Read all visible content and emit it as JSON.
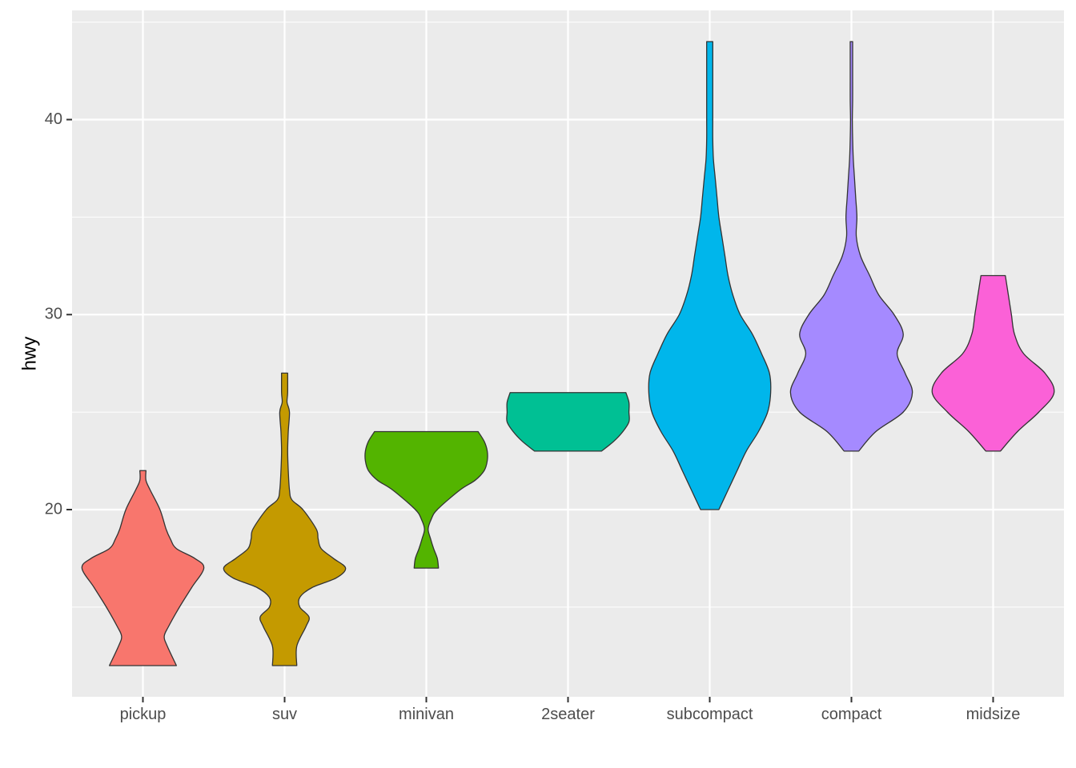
{
  "chart_data": {
    "type": "violin",
    "title": "",
    "xlabel": "",
    "ylabel": "hwy",
    "ylim": [
      10.4,
      45.6
    ],
    "y_ticks": [
      20,
      30,
      40
    ],
    "grid": true,
    "legend": "none",
    "background": "#ebebeb",
    "categories": [
      {
        "name": "pickup",
        "color": "#f8766d",
        "profile": [
          [
            12,
            0.55
          ],
          [
            13,
            0.4
          ],
          [
            13.5,
            0.35
          ],
          [
            14,
            0.42
          ],
          [
            15,
            0.6
          ],
          [
            16,
            0.8
          ],
          [
            17,
            1.0
          ],
          [
            17.5,
            0.85
          ],
          [
            18,
            0.55
          ],
          [
            18.5,
            0.45
          ],
          [
            19,
            0.38
          ],
          [
            20,
            0.28
          ],
          [
            21,
            0.12
          ],
          [
            21.5,
            0.05
          ],
          [
            22,
            0.05
          ]
        ]
      },
      {
        "name": "suv",
        "color": "#c49a00",
        "profile": [
          [
            12,
            0.2
          ],
          [
            13,
            0.2
          ],
          [
            14,
            0.35
          ],
          [
            14.5,
            0.4
          ],
          [
            15,
            0.25
          ],
          [
            15.5,
            0.25
          ],
          [
            16,
            0.45
          ],
          [
            16.5,
            0.85
          ],
          [
            17,
            1.0
          ],
          [
            17.5,
            0.8
          ],
          [
            18,
            0.6
          ],
          [
            18.5,
            0.55
          ],
          [
            19,
            0.52
          ],
          [
            20,
            0.3
          ],
          [
            20.5,
            0.12
          ],
          [
            21,
            0.08
          ],
          [
            22,
            0.06
          ],
          [
            23,
            0.05
          ],
          [
            24,
            0.06
          ],
          [
            25,
            0.08
          ],
          [
            25.5,
            0.04
          ],
          [
            26,
            0.05
          ],
          [
            27,
            0.05
          ]
        ]
      },
      {
        "name": "minivan",
        "color": "#53b400",
        "profile": [
          [
            17,
            0.2
          ],
          [
            17.5,
            0.18
          ],
          [
            18,
            0.12
          ],
          [
            18.5,
            0.07
          ],
          [
            19,
            0.03
          ],
          [
            19.5,
            0.08
          ],
          [
            20,
            0.18
          ],
          [
            21,
            0.55
          ],
          [
            21.5,
            0.8
          ],
          [
            22,
            0.95
          ],
          [
            22.5,
            1.0
          ],
          [
            23,
            1.0
          ],
          [
            23.5,
            0.95
          ],
          [
            24,
            0.85
          ]
        ]
      },
      {
        "name": "2seater",
        "color": "#00c094",
        "profile": [
          [
            23,
            0.55
          ],
          [
            23.5,
            0.75
          ],
          [
            24,
            0.9
          ],
          [
            24.5,
            1.0
          ],
          [
            25,
            1.0
          ],
          [
            25.5,
            1.0
          ],
          [
            26,
            0.95
          ]
        ]
      },
      {
        "name": "subcompact",
        "color": "#00b6eb",
        "profile": [
          [
            20,
            0.15
          ],
          [
            21,
            0.3
          ],
          [
            22,
            0.45
          ],
          [
            23,
            0.6
          ],
          [
            24,
            0.8
          ],
          [
            25,
            0.95
          ],
          [
            26,
            1.0
          ],
          [
            27,
            0.98
          ],
          [
            28,
            0.85
          ],
          [
            29,
            0.7
          ],
          [
            30,
            0.5
          ],
          [
            31,
            0.38
          ],
          [
            32,
            0.3
          ],
          [
            33,
            0.25
          ],
          [
            34,
            0.2
          ],
          [
            35,
            0.15
          ],
          [
            36,
            0.12
          ],
          [
            37,
            0.09
          ],
          [
            38,
            0.06
          ],
          [
            39,
            0.05
          ],
          [
            40,
            0.05
          ],
          [
            41,
            0.05
          ],
          [
            42,
            0.05
          ],
          [
            43,
            0.05
          ],
          [
            44,
            0.05
          ]
        ]
      },
      {
        "name": "compact",
        "color": "#a58aff",
        "profile": [
          [
            23,
            0.12
          ],
          [
            24,
            0.4
          ],
          [
            25,
            0.85
          ],
          [
            26,
            1.0
          ],
          [
            27,
            0.88
          ],
          [
            28,
            0.75
          ],
          [
            29,
            0.85
          ],
          [
            30,
            0.7
          ],
          [
            31,
            0.45
          ],
          [
            32,
            0.3
          ],
          [
            33,
            0.15
          ],
          [
            34,
            0.08
          ],
          [
            35,
            0.09
          ],
          [
            36,
            0.07
          ],
          [
            37,
            0.05
          ],
          [
            38,
            0.03
          ],
          [
            39,
            0.02
          ],
          [
            40,
            0.015
          ],
          [
            41,
            0.02
          ],
          [
            42,
            0.02
          ],
          [
            43,
            0.02
          ],
          [
            44,
            0.02
          ]
        ]
      },
      {
        "name": "midsize",
        "color": "#fb61d7",
        "profile": [
          [
            23,
            0.12
          ],
          [
            24,
            0.4
          ],
          [
            25,
            0.75
          ],
          [
            26,
            1.0
          ],
          [
            27,
            0.85
          ],
          [
            28,
            0.5
          ],
          [
            29,
            0.35
          ],
          [
            30,
            0.3
          ],
          [
            31,
            0.25
          ],
          [
            32,
            0.2
          ]
        ]
      }
    ]
  }
}
